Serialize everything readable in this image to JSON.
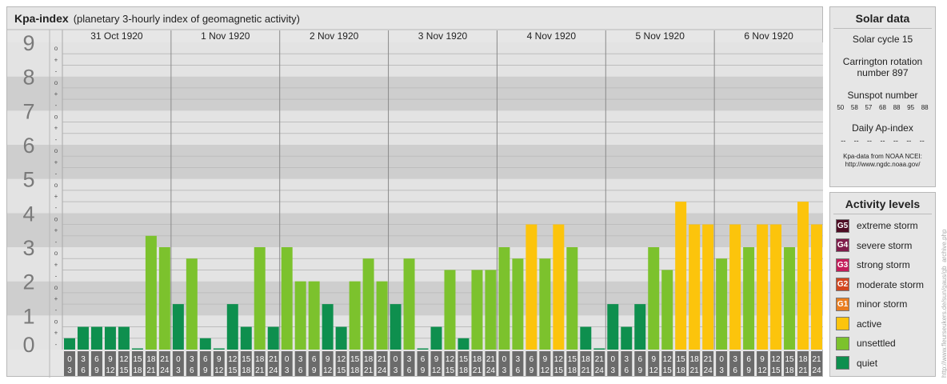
{
  "title": {
    "main": "Kpa-index",
    "subtitle": "(planetary 3-hourly index of geomagnetic activity)"
  },
  "colors": {
    "quiet": "#0e8f4e",
    "unsettled": "#7cc22d",
    "active": "#fcc40c",
    "minor_storm": "#e97d1f",
    "moderate_storm": "#d2461f",
    "strong_storm": "#c31d5b",
    "severe_storm": "#7f1c4b",
    "extreme_storm": "#4e0d24"
  },
  "chart_data": {
    "type": "bar",
    "title": "Kpa-index",
    "ylim": [
      0,
      9
    ],
    "y_ticks": [
      "0",
      "1",
      "2",
      "3",
      "4",
      "5",
      "6",
      "7",
      "8",
      "9"
    ],
    "y_sublabels": [
      "o",
      "+",
      "-"
    ],
    "days": [
      "31 Oct 1920",
      "1 Nov 1920",
      "2 Nov 1920",
      "3 Nov 1920",
      "4 Nov 1920",
      "5 Nov 1920",
      "6 Nov 1920"
    ],
    "interval_labels": [
      [
        "0",
        "3"
      ],
      [
        "3",
        "6"
      ],
      [
        "6",
        "9"
      ],
      [
        "9",
        "12"
      ],
      [
        "12",
        "15"
      ],
      [
        "15",
        "18"
      ],
      [
        "18",
        "21"
      ],
      [
        "21",
        "24"
      ]
    ],
    "values": [
      [
        0.333,
        0.667,
        0.667,
        0.667,
        0.667,
        0.0,
        3.333,
        3.0
      ],
      [
        1.333,
        2.667,
        0.333,
        0.0,
        1.333,
        0.667,
        3.0,
        0.667
      ],
      [
        3.0,
        2.0,
        2.0,
        1.333,
        0.667,
        2.0,
        2.667,
        2.0
      ],
      [
        1.333,
        2.667,
        0.0,
        0.667,
        2.333,
        0.333,
        2.333,
        2.333
      ],
      [
        3.0,
        2.667,
        3.667,
        2.667,
        3.667,
        3.0,
        0.667,
        0.0
      ],
      [
        1.333,
        0.667,
        1.333,
        3.0,
        2.333,
        4.333,
        3.667,
        3.667
      ],
      [
        2.667,
        3.667,
        3.0,
        3.667,
        3.667,
        3.0,
        4.333,
        3.667
      ]
    ],
    "levels": [
      [
        "quiet",
        "quiet",
        "quiet",
        "quiet",
        "quiet",
        "quiet",
        "unsettled",
        "unsettled"
      ],
      [
        "quiet",
        "unsettled",
        "quiet",
        "quiet",
        "quiet",
        "quiet",
        "unsettled",
        "quiet"
      ],
      [
        "unsettled",
        "unsettled",
        "unsettled",
        "quiet",
        "quiet",
        "unsettled",
        "unsettled",
        "unsettled"
      ],
      [
        "quiet",
        "unsettled",
        "quiet",
        "quiet",
        "unsettled",
        "quiet",
        "unsettled",
        "unsettled"
      ],
      [
        "unsettled",
        "unsettled",
        "active",
        "unsettled",
        "active",
        "unsettled",
        "quiet",
        "quiet"
      ],
      [
        "quiet",
        "quiet",
        "quiet",
        "unsettled",
        "unsettled",
        "active",
        "active",
        "active"
      ],
      [
        "unsettled",
        "active",
        "unsettled",
        "active",
        "active",
        "unsettled",
        "active",
        "active"
      ]
    ]
  },
  "solar_data": {
    "heading": "Solar data",
    "solar_cycle": "Solar cycle 15",
    "carrington_line1": "Carrington rotation",
    "carrington_line2": "number 897",
    "sunspot_heading": "Sunspot number",
    "sunspot_values": [
      "50",
      "58",
      "57",
      "68",
      "88",
      "95",
      "88"
    ],
    "ap_heading": "Daily Ap-index",
    "ap_values": [
      "--",
      "--",
      "--",
      "--",
      "--",
      "--",
      "--"
    ],
    "source_line1": "Kpa-data from NOAA NCEI:",
    "source_line2": "http://www.ngdc.noaa.gov/"
  },
  "activity_levels": {
    "heading": "Activity levels",
    "items": [
      {
        "code": "G5",
        "label": "extreme storm",
        "color": "#4e0d24"
      },
      {
        "code": "G4",
        "label": "severe storm",
        "color": "#7f1c4b"
      },
      {
        "code": "G3",
        "label": "strong storm",
        "color": "#c31d5b"
      },
      {
        "code": "G2",
        "label": "moderate storm",
        "color": "#d2461f"
      },
      {
        "code": "G1",
        "label": "minor storm",
        "color": "#e97d1f"
      },
      {
        "code": "",
        "label": "active",
        "color": "#fcc40c"
      },
      {
        "code": "",
        "label": "unsettled",
        "color": "#7cc22d"
      },
      {
        "code": "",
        "label": "quiet",
        "color": "#0e8f4e"
      }
    ]
  },
  "credit": "http://www.fleurseukers.de/sun/gaus/gb_archive.php"
}
